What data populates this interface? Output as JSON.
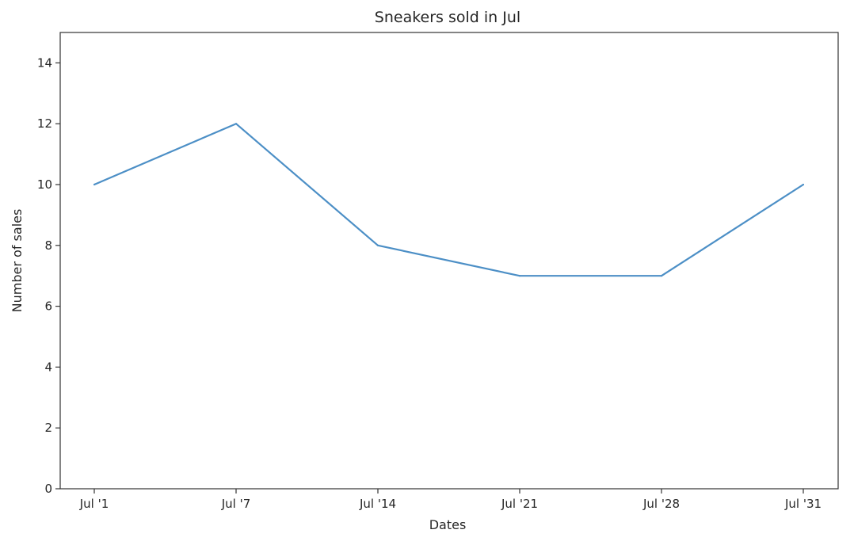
{
  "chart_data": {
    "type": "line",
    "title": "Sneakers sold in Jul",
    "xlabel": "Dates",
    "ylabel": "Number of sales",
    "categories": [
      "Jul '1",
      "Jul '7",
      "Jul '14",
      "Jul '21",
      "Jul '28",
      "Jul '31"
    ],
    "series": [
      {
        "values": [
          10,
          12,
          8,
          7,
          7,
          10
        ],
        "color": "#4c8fc6"
      }
    ],
    "ylim": [
      0,
      15
    ],
    "yticks": [
      0,
      2,
      4,
      6,
      8,
      10,
      12,
      14
    ],
    "grid": false,
    "legend": "none"
  }
}
